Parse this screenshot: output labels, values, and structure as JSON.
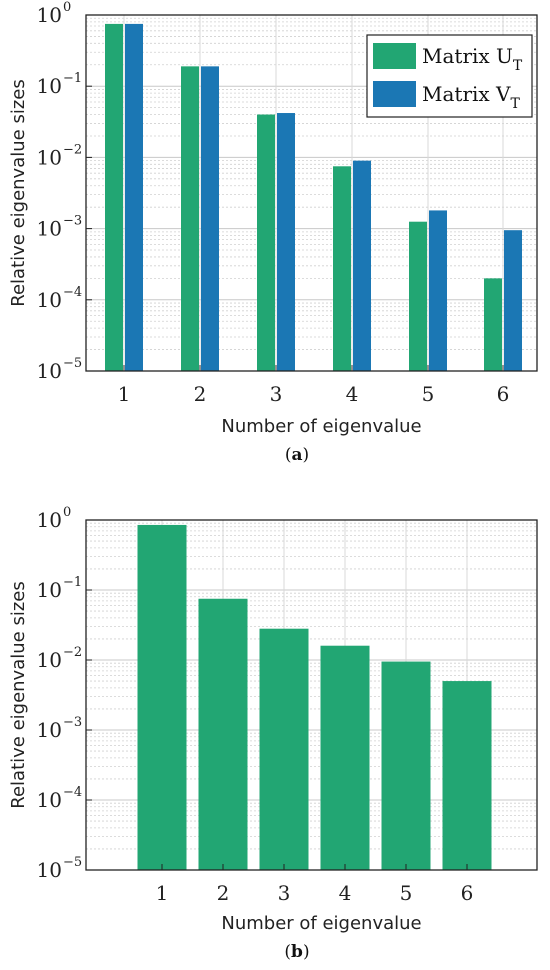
{
  "colors": {
    "matrix_u": "#22a673",
    "matrix_v": "#1b77b4"
  },
  "chart_data": [
    {
      "type": "bar",
      "caption": "(a)",
      "caption_letter": "a",
      "xlabel": "Number of eigenvalue",
      "ylabel": "Relative eigenvalue sizes",
      "yscale": "log",
      "ylim": [
        1e-05,
        1
      ],
      "ytick_labels": [
        "10",
        "10",
        "10",
        "10",
        "10",
        "10"
      ],
      "ytick_exponents": [
        "0",
        "−1",
        "−2",
        "−3",
        "−4",
        "−5"
      ],
      "grid": true,
      "legend_position": "top-right",
      "categories": [
        "1",
        "2",
        "3",
        "4",
        "5",
        "6"
      ],
      "series": [
        {
          "name": "Matrix U",
          "subscript": "T",
          "color": "#22a673",
          "values": [
            0.75,
            0.19,
            0.04,
            0.0075,
            0.00125,
            0.0002
          ]
        },
        {
          "name": "Matrix V",
          "subscript": "T",
          "color": "#1b77b4",
          "values": [
            0.75,
            0.19,
            0.042,
            0.009,
            0.0018,
            0.00095
          ]
        }
      ]
    },
    {
      "type": "bar",
      "caption": "(b)",
      "caption_letter": "b",
      "xlabel": "Number of eigenvalue",
      "ylabel": "Relative eigenvalue sizes",
      "yscale": "log",
      "ylim": [
        1e-05,
        1
      ],
      "ytick_labels": [
        "10",
        "10",
        "10",
        "10",
        "10",
        "10"
      ],
      "ytick_exponents": [
        "0",
        "−1",
        "−2",
        "−3",
        "−4",
        "−5"
      ],
      "grid": true,
      "categories": [
        "1",
        "2",
        "3",
        "4",
        "5",
        "6"
      ],
      "series": [
        {
          "color": "#22a673",
          "values": [
            0.85,
            0.075,
            0.028,
            0.016,
            0.0095,
            0.005
          ]
        }
      ]
    }
  ]
}
